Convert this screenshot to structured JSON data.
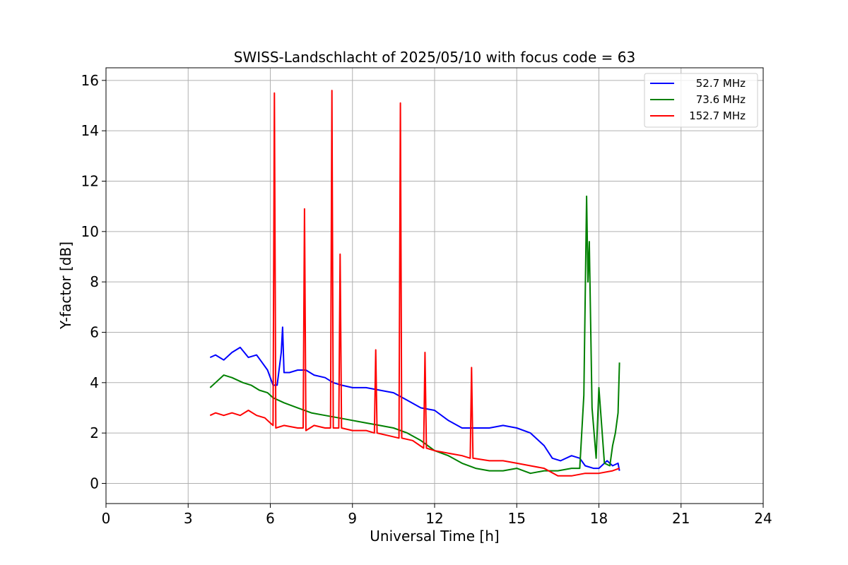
{
  "chart_data": {
    "type": "line",
    "title": "SWISS-Landschlacht of 2025/05/10 with focus code = 63",
    "xlabel": "Universal Time [h]",
    "ylabel": "Y-factor [dB]",
    "xlim": [
      0,
      24
    ],
    "ylim": [
      -0.8,
      16.5
    ],
    "xticks": [
      "0",
      "3",
      "6",
      "9",
      "12",
      "15",
      "18",
      "21",
      "24"
    ],
    "yticks": [
      "0",
      "2",
      "4",
      "6",
      "8",
      "10",
      "12",
      "14",
      "16"
    ],
    "grid": true,
    "legend_position": "top-right",
    "series": [
      {
        "name": "52.7 MHz",
        "color": "#0000ff",
        "x": [
          3.8,
          4.0,
          4.3,
          4.6,
          4.9,
          5.2,
          5.5,
          5.7,
          5.9,
          6.0,
          6.1,
          6.25,
          6.4,
          6.45,
          6.5,
          6.7,
          7.0,
          7.3,
          7.6,
          8.0,
          8.3,
          8.6,
          9.0,
          9.5,
          10.0,
          10.5,
          11.0,
          11.5,
          12.0,
          12.5,
          13.0,
          13.5,
          14.0,
          14.5,
          15.0,
          15.5,
          16.0,
          16.3,
          16.6,
          17.0,
          17.3,
          17.5,
          17.8,
          18.0,
          18.3,
          18.5,
          18.7,
          18.75
        ],
        "y": [
          5.0,
          5.1,
          4.9,
          5.2,
          5.4,
          5.0,
          5.1,
          4.8,
          4.5,
          4.2,
          3.9,
          3.9,
          5.2,
          6.2,
          4.4,
          4.4,
          4.5,
          4.5,
          4.3,
          4.2,
          4.0,
          3.9,
          3.8,
          3.8,
          3.7,
          3.6,
          3.3,
          3.0,
          2.9,
          2.5,
          2.2,
          2.2,
          2.2,
          2.3,
          2.2,
          2.0,
          1.5,
          1.0,
          0.9,
          1.1,
          1.0,
          0.7,
          0.6,
          0.6,
          0.9,
          0.7,
          0.8,
          0.5
        ]
      },
      {
        "name": "73.6 MHz",
        "color": "#008000",
        "x": [
          3.8,
          4.0,
          4.3,
          4.6,
          5.0,
          5.3,
          5.6,
          5.9,
          6.1,
          6.5,
          7.0,
          7.5,
          8.0,
          8.5,
          9.0,
          9.5,
          10.0,
          10.5,
          11.0,
          11.5,
          12.0,
          12.5,
          13.0,
          13.5,
          14.0,
          14.5,
          15.0,
          15.5,
          16.0,
          16.5,
          17.0,
          17.3,
          17.45,
          17.55,
          17.6,
          17.65,
          17.75,
          17.9,
          18.0,
          18.2,
          18.4,
          18.5,
          18.6,
          18.7,
          18.75
        ],
        "y": [
          3.8,
          4.0,
          4.3,
          4.2,
          4.0,
          3.9,
          3.7,
          3.6,
          3.4,
          3.2,
          3.0,
          2.8,
          2.7,
          2.6,
          2.5,
          2.4,
          2.3,
          2.2,
          2.0,
          1.7,
          1.3,
          1.1,
          0.8,
          0.6,
          0.5,
          0.5,
          0.6,
          0.4,
          0.5,
          0.5,
          0.6,
          0.6,
          3.5,
          11.4,
          8.0,
          9.6,
          3.0,
          1.0,
          3.8,
          0.8,
          0.7,
          1.5,
          2.0,
          2.8,
          4.8
        ]
      },
      {
        "name": "152.7 MHz",
        "color": "#ff0000",
        "x": [
          3.8,
          4.0,
          4.3,
          4.6,
          4.9,
          5.2,
          5.5,
          5.8,
          6.0,
          6.1,
          6.15,
          6.2,
          6.5,
          7.0,
          7.2,
          7.25,
          7.3,
          7.6,
          8.0,
          8.2,
          8.25,
          8.3,
          8.5,
          8.55,
          8.6,
          9.0,
          9.5,
          9.8,
          9.85,
          9.9,
          10.3,
          10.7,
          10.75,
          10.8,
          11.2,
          11.6,
          11.65,
          11.7,
          12.0,
          12.5,
          13.0,
          13.3,
          13.35,
          13.4,
          14.0,
          14.5,
          15.0,
          15.5,
          16.0,
          16.5,
          17.0,
          17.5,
          18.0,
          18.5,
          18.75
        ],
        "y": [
          2.7,
          2.8,
          2.7,
          2.8,
          2.7,
          2.9,
          2.7,
          2.6,
          2.4,
          2.3,
          15.5,
          2.2,
          2.3,
          2.2,
          2.2,
          10.9,
          2.1,
          2.3,
          2.2,
          2.2,
          15.6,
          2.2,
          2.2,
          9.1,
          2.2,
          2.1,
          2.1,
          2.0,
          5.3,
          2.0,
          1.9,
          1.8,
          15.1,
          1.8,
          1.7,
          1.4,
          5.2,
          1.4,
          1.3,
          1.2,
          1.1,
          1.0,
          4.6,
          1.0,
          0.9,
          0.9,
          0.8,
          0.7,
          0.6,
          0.3,
          0.3,
          0.4,
          0.4,
          0.5,
          0.6
        ]
      }
    ]
  }
}
